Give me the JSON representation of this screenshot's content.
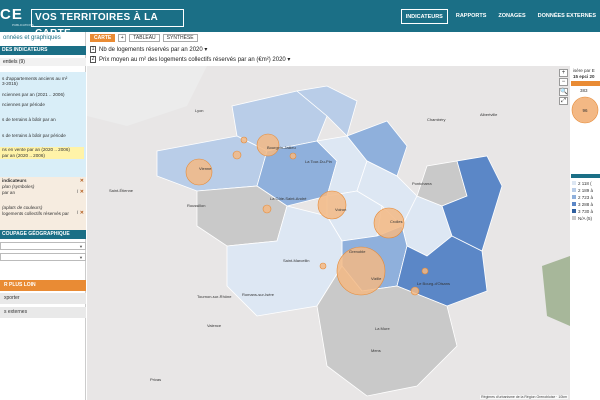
{
  "header": {
    "logo_text": "CE",
    "logo_sub": "PUBLICATIONS",
    "app_title": "VOS TERRITOIRES À LA CARTE",
    "nav": [
      "INDICATEURS",
      "RAPPORTS",
      "ZONAGES",
      "DONNÉES EXTERNES"
    ]
  },
  "sidebar": {
    "link": "onnées et graphiques",
    "section_indicators": "DES INDICATEURS",
    "sub_essentials": "entiels (9)",
    "indicator_items": [
      "s d'appartements anciens au m²",
      "3-2015)",
      "nciennes par an (2021 .. 2006)",
      "nciennes par période",
      "",
      "s de terrains à bâtir par an",
      "",
      "s de terrains à bâtir par période",
      "",
      "ns en vente par an (2020 .. 2006)",
      "par an (2020 .. 2006)"
    ],
    "selected_header": "indicateurs",
    "selected_items": [
      {
        "text": "plan (symboles)",
        "italic": true
      },
      {
        "text": "par an",
        "italic": false
      },
      {
        "text": "",
        "italic": false
      },
      {
        "text": "(aplats de couleurs)",
        "italic": true
      },
      {
        "text": "logements collectifs réservés par",
        "italic": false
      }
    ],
    "section_geo": "COUPAGE GÉOGRAPHIQUE",
    "more_btn": "R PLUS LOIN",
    "export_btn": "xporter",
    "external_btn": "s externes"
  },
  "view_tabs": {
    "carte": "CARTE",
    "plus": "+",
    "tableau": "TABLEAU",
    "synthese": "SYNTHÈSE"
  },
  "indicators": [
    {
      "num": "1",
      "label": "Nb de logements réservés par an  2020 ▾"
    },
    {
      "num": "2",
      "label": "Prix moyen au m² des logements collectifs réservés par an (€m²)  2020 ▾"
    }
  ],
  "map": {
    "controls": [
      "+",
      "−",
      "🔍",
      "⤢"
    ],
    "credit": "Régimes d'urbanisme de la Région Grenobloise · 10km",
    "colors": {
      "lightest": "#dde7f3",
      "light": "#b9cde8",
      "mid": "#8fb0dc",
      "dark": "#5b87c7",
      "na": "#c9c9c9",
      "bubble": "#f3b884",
      "bubble_stroke": "#e68a36"
    },
    "places": [
      {
        "name": "Lyon"
      },
      {
        "name": "Bourgoin-Jallieu"
      },
      {
        "name": "Vienne"
      },
      {
        "name": "La Tour-Du-Pin"
      },
      {
        "name": "Saint-Étienne"
      },
      {
        "name": "Roussillon"
      },
      {
        "name": "La Côte-Saint-André"
      },
      {
        "name": "Voiron"
      },
      {
        "name": "Crolles"
      },
      {
        "name": "Pontcharra"
      },
      {
        "name": "Grenoble"
      },
      {
        "name": "Vizille"
      },
      {
        "name": "Saint-Marcellin"
      },
      {
        "name": "Le Bourg-d'Oisans"
      },
      {
        "name": "Romans-sur-Isère"
      },
      {
        "name": "Tournon-sur-Rhône"
      },
      {
        "name": "Valence"
      },
      {
        "name": "La Mure"
      },
      {
        "name": "Mens"
      },
      {
        "name": "Chambéry"
      },
      {
        "name": "Albertville"
      },
      {
        "name": "Privas"
      }
    ]
  },
  "legend": {
    "title": "isère par E",
    "subtitle": "15 epci 20",
    "bubble_max": "383",
    "bubble_mid": "96",
    "classes": [
      {
        "label": "2 118 (",
        "color": "#dde7f3"
      },
      {
        "label": "2 189 à",
        "color": "#b9cde8"
      },
      {
        "label": "2 723 à",
        "color": "#8fb0dc"
      },
      {
        "label": "3 288 à",
        "color": "#5b87c7"
      },
      {
        "label": "3 730 à",
        "color": "#2f5f9e"
      },
      {
        "label": "N/A (5)",
        "color": "#c9c9c9"
      }
    ]
  }
}
